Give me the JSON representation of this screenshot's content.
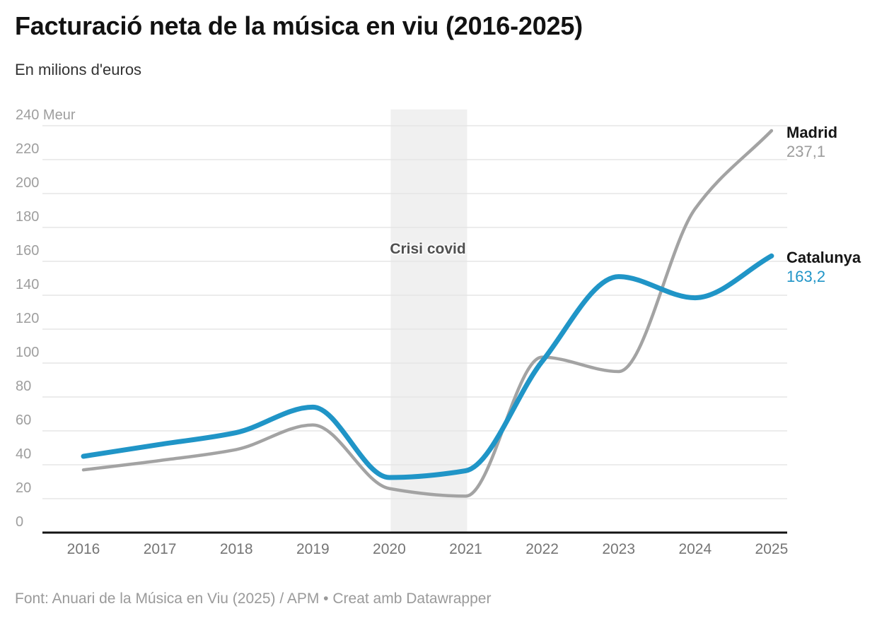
{
  "chart_data": {
    "type": "line",
    "title": "Facturació neta de la música en viu (2016-2025)",
    "subtitle": "En milions d'euros",
    "x": [
      2016,
      2017,
      2018,
      2019,
      2020,
      2021,
      2022,
      2023,
      2024,
      2025
    ],
    "series": [
      {
        "name": "Madrid",
        "color": "#a3a3a3",
        "value_color": "#9b9b9b",
        "end_label": "237,1",
        "end_value": 237.1,
        "values": [
          37,
          42.5,
          49,
          63.5,
          26,
          21.5,
          103.5,
          95,
          191,
          237.1
        ]
      },
      {
        "name": "Catalunya",
        "color": "#2095c7",
        "value_color": "#2095c7",
        "end_label": "163,2",
        "end_value": 163.2,
        "values": [
          45,
          52,
          59,
          74,
          32.5,
          36.5,
          101,
          151,
          138.5,
          163.2
        ]
      }
    ],
    "y": {
      "min": 0,
      "max": 240,
      "step": 20,
      "unit": "Meur",
      "tick_labels": [
        "240 Meur",
        "220",
        "200",
        "180",
        "160",
        "140",
        "120",
        "100",
        "80",
        "60",
        "40",
        "20",
        "0"
      ]
    },
    "x_tick_labels": [
      "2016",
      "2017",
      "2018",
      "2019",
      "2020",
      "2021",
      "2022",
      "2023",
      "2024",
      "2025"
    ],
    "band": {
      "x_from": 2020,
      "x_to": 2021,
      "label": "Crisi covid",
      "color": "#f0f0f0"
    },
    "grid": "horizontal",
    "ylim": [
      0,
      240
    ],
    "legend_position": "labels-at-line-ends"
  },
  "footer": {
    "text": "Font: Anuari de la Música en Viu (2025) / APM • Creat amb Datawrapper"
  },
  "colors": {
    "background": "#ffffff",
    "grid": "#e6e6e6",
    "axis": "#141414",
    "y_tick": "#9e9e9e",
    "x_tick": "#757575",
    "title": "#121212",
    "subtitle": "#333333",
    "band_label": "#4f4f4f",
    "footer": "#9a9a9a"
  }
}
